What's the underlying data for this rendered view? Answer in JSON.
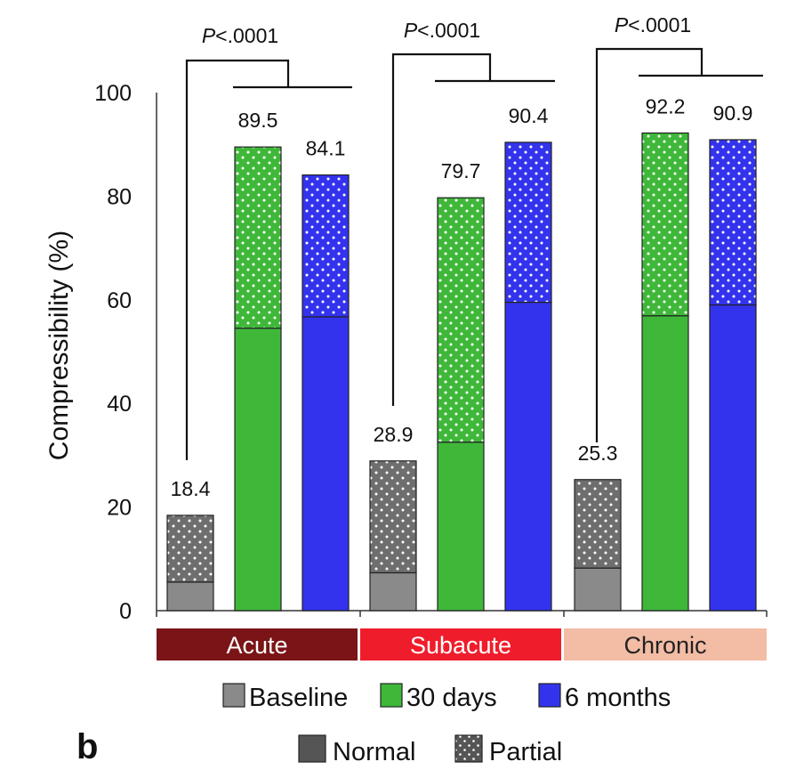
{
  "chart_data": {
    "type": "bar",
    "subtype": "stacked",
    "panel_label": "b",
    "ylabel": "Compressibility (%)",
    "ylim": [
      0,
      100
    ],
    "yticks": [
      0,
      20,
      40,
      60,
      80,
      100
    ],
    "groups": [
      {
        "name": "Acute",
        "color": "#7b1416",
        "text_color": "#ffffff"
      },
      {
        "name": "Subacute",
        "color": "#ef1d2b",
        "text_color": "#ffffff"
      },
      {
        "name": "Chronic",
        "color": "#f3bca4",
        "text_color": "#222222"
      }
    ],
    "timepoints": [
      {
        "name": "Baseline",
        "color": "#8a8a8a"
      },
      {
        "name": "30 days",
        "color": "#3fb83a"
      },
      {
        "name": "6 months",
        "color": "#3333ee"
      }
    ],
    "stack_components": [
      {
        "name": "Normal",
        "style": "solid"
      },
      {
        "name": "Partial",
        "style": "dotted"
      }
    ],
    "bars": [
      {
        "group": "Acute",
        "timepoint": "Baseline",
        "normal": 5.5,
        "total": 18.4,
        "label": "18.4"
      },
      {
        "group": "Acute",
        "timepoint": "30 days",
        "normal": 54.5,
        "total": 89.5,
        "label": "89.5"
      },
      {
        "group": "Acute",
        "timepoint": "6 months",
        "normal": 56.7,
        "total": 84.1,
        "label": "84.1"
      },
      {
        "group": "Subacute",
        "timepoint": "Baseline",
        "normal": 7.3,
        "total": 28.9,
        "label": "28.9"
      },
      {
        "group": "Subacute",
        "timepoint": "30 days",
        "normal": 32.5,
        "total": 79.7,
        "label": "79.7"
      },
      {
        "group": "Subacute",
        "timepoint": "6 months",
        "normal": 59.5,
        "total": 90.4,
        "label": "90.4"
      },
      {
        "group": "Chronic",
        "timepoint": "Baseline",
        "normal": 8.2,
        "total": 25.3,
        "label": "25.3"
      },
      {
        "group": "Chronic",
        "timepoint": "30 days",
        "normal": 56.9,
        "total": 92.2,
        "label": "92.2"
      },
      {
        "group": "Chronic",
        "timepoint": "6 months",
        "normal": 59.0,
        "total": 90.9,
        "label": "90.9"
      }
    ],
    "significance": [
      {
        "group": "Acute",
        "text": "P<.0001"
      },
      {
        "group": "Subacute",
        "text": "P<.0001"
      },
      {
        "group": "Chronic",
        "text": "P<.0001"
      }
    ]
  }
}
